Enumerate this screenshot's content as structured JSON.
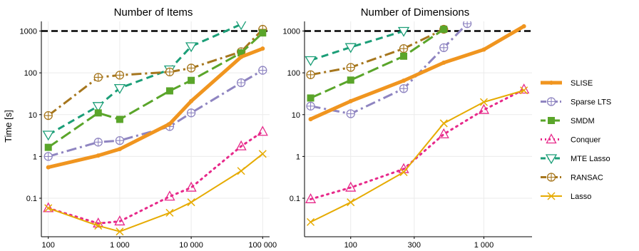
{
  "chart_data": {
    "type": "line",
    "y_title": "Time [s]",
    "y_scale": "log",
    "y_ticks": [
      0.1,
      1,
      10,
      100,
      1000
    ],
    "y_tick_labels": [
      "0.1",
      "1",
      "10",
      "100",
      "1000"
    ],
    "reference_line_y": 1000,
    "legend_position": "right",
    "legend": [
      {
        "name": "SLISE",
        "color": "#f0951f",
        "marker": "circle-small",
        "dash": "solid",
        "width": 5
      },
      {
        "name": "Sparse LTS",
        "color": "#8f85c1",
        "marker": "circle-open-plus",
        "dash": "dashdot",
        "width": 3
      },
      {
        "name": "SMDM",
        "color": "#5aa52a",
        "marker": "square",
        "dash": "longdash",
        "width": 3
      },
      {
        "name": "Conquer",
        "color": "#e7298a",
        "marker": "triangle-open",
        "dash": "dotted",
        "width": 3
      },
      {
        "name": "MTE Lasso",
        "color": "#1b9e77",
        "marker": "triangle-down-open",
        "dash": "dashed",
        "width": 3
      },
      {
        "name": "RANSAC",
        "color": "#a6761d",
        "marker": "circle-open-plus",
        "dash": "dashdot",
        "width": 3
      },
      {
        "name": "Lasso",
        "color": "#e6ab02",
        "marker": "cross",
        "dash": "solid",
        "width": 2
      }
    ],
    "panels": [
      {
        "title": "Number of Items",
        "x_scale": "log",
        "x_range": [
          80,
          125000
        ],
        "x_ticks": [
          100,
          1000,
          10000,
          100000
        ],
        "x_tick_labels": [
          "100",
          "1 000",
          "10 000",
          "100 000"
        ],
        "series": [
          {
            "name": "SLISE",
            "x": [
              100,
              500,
              1000,
              5000,
              10000,
              50000,
              100000
            ],
            "y": [
              0.55,
              1.05,
              1.5,
              6.0,
              21,
              240,
              380
            ]
          },
          {
            "name": "Sparse LTS",
            "x": [
              100,
              500,
              1000,
              5000,
              10000,
              50000,
              100000
            ],
            "y": [
              1.0,
              2.2,
              2.4,
              5.2,
              11,
              58,
              115
            ]
          },
          {
            "name": "SMDM",
            "x": [
              100,
              500,
              1000,
              5000,
              10000,
              50000,
              100000
            ],
            "y": [
              1.65,
              11,
              7.7,
              37,
              66,
              300,
              900
            ]
          },
          {
            "name": "Conquer",
            "x": [
              100,
              500,
              1000,
              5000,
              10000,
              50000,
              100000
            ],
            "y": [
              0.058,
              0.025,
              0.028,
              0.11,
              0.18,
              1.75,
              3.9
            ]
          },
          {
            "name": "MTE Lasso",
            "x": [
              100,
              500,
              1000,
              5000,
              10000,
              50000
            ],
            "y": [
              3.3,
              16,
              43,
              120,
              430,
              1450
            ]
          },
          {
            "name": "RANSAC",
            "x": [
              100,
              500,
              1000,
              5000,
              10000,
              50000,
              100000
            ],
            "y": [
              9.5,
              78,
              88,
              105,
              130,
              320,
              1100
            ]
          },
          {
            "name": "Lasso",
            "x": [
              100,
              500,
              1000,
              5000,
              10000,
              50000,
              100000
            ],
            "y": [
              0.058,
              0.022,
              0.016,
              0.045,
              0.08,
              0.45,
              1.15
            ]
          }
        ]
      },
      {
        "title": "Number of Dimensions",
        "x_scale": "log",
        "x_range": [
          45,
          2300
        ],
        "x_ticks": [
          100,
          300,
          1000
        ],
        "x_tick_labels": [
          "100",
          "300",
          "1 000"
        ],
        "series": [
          {
            "name": "SLISE",
            "x": [
              50,
              100,
              250,
              500,
              1000,
              2000
            ],
            "y": [
              7.8,
              21,
              65,
              175,
              360,
              1300
            ]
          },
          {
            "name": "Sparse LTS",
            "x": [
              50,
              100,
              250,
              500,
              750
            ],
            "y": [
              16,
              10.5,
              42,
              400,
              1500
            ]
          },
          {
            "name": "SMDM",
            "x": [
              50,
              100,
              250,
              500
            ],
            "y": [
              25,
              67,
              250,
              1100
            ]
          },
          {
            "name": "Conquer",
            "x": [
              50,
              100,
              250,
              500,
              1000,
              2000
            ],
            "y": [
              0.095,
              0.18,
              0.5,
              3.4,
              13,
              40
            ]
          },
          {
            "name": "MTE Lasso",
            "x": [
              50,
              100,
              250
            ],
            "y": [
              200,
              410,
              1000
            ]
          },
          {
            "name": "RANSAC",
            "x": [
              50,
              100,
              250,
              500
            ],
            "y": [
              90,
              135,
              380,
              1100
            ]
          },
          {
            "name": "Lasso",
            "x": [
              50,
              100,
              250,
              500,
              1000,
              2000
            ],
            "y": [
              0.027,
              0.08,
              0.42,
              6.2,
              20,
              38
            ]
          }
        ]
      }
    ]
  }
}
